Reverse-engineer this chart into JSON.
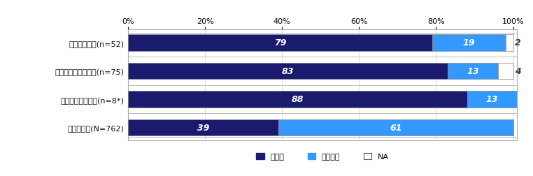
{
  "categories": [
    "殺人・傷害等(n=52)",
    "交通事故による被害(n=75)",
    "性犯罪による被害(n=8*)",
    "一般対象者(N=762)"
  ],
  "data": [
    [
      79,
      19,
      2
    ],
    [
      83,
      13,
      4
    ],
    [
      88,
      13,
      0
    ],
    [
      39,
      61,
      0
    ]
  ],
  "labels": [
    "あった",
    "なかった",
    "NA"
  ],
  "colors": [
    "#1a1a6e",
    "#3399ff",
    "#ffffff"
  ],
  "bar_border_color": "#888888",
  "text_color_white": "#ffffff",
  "text_color_dark": "#333333",
  "figsize": [
    7.62,
    2.53
  ],
  "dpi": 100,
  "xlim": [
    0,
    100
  ],
  "xticks": [
    0,
    20,
    40,
    60,
    80,
    100
  ],
  "xticklabels": [
    "0%",
    "20%",
    "40%",
    "60%",
    "80%",
    "100%"
  ],
  "background_color": "#ffffff",
  "plot_bg_color": "#ffffff",
  "grid_color": "#cccccc",
  "legend_fontsize": 8,
  "tick_fontsize": 8,
  "label_fontsize": 8,
  "value_fontsize": 9,
  "ylabel_color": "#111111"
}
